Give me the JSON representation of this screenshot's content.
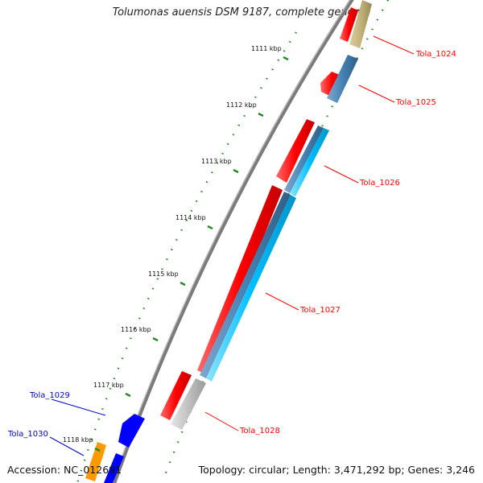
{
  "title": "Tolumonas auensis DSM 9187, complete genome",
  "accession": "Accession: NC_012691",
  "summary": "Topology: circular; Length: 3,471,292 bp; Genes: 3,246",
  "kbp_ticks": [
    "1111 kbp",
    "1112 kbp",
    "1113 kbp",
    "1114 kbp",
    "1115 kbp",
    "1116 kbp",
    "1117 kbp",
    "1118 kbp"
  ],
  "gene_labels": [
    {
      "text": "Tola_1024",
      "color": "#ff0000"
    },
    {
      "text": "Tola_1025",
      "color": "#ff0000"
    },
    {
      "text": "Tola_1026",
      "color": "#ff0000"
    },
    {
      "text": "Tola_1027",
      "color": "#ff0000"
    },
    {
      "text": "Tola_1028",
      "color": "#ff0000"
    },
    {
      "text": "Tola_1029",
      "color": "#0000cc"
    },
    {
      "text": "Tola_1030",
      "color": "#0000cc"
    }
  ],
  "colors": {
    "red": "#ff1a1a",
    "steel_blue": "#4682b4",
    "cyan": "#00bfff",
    "olive": "#c2b27a",
    "gray": "#c0c0c0",
    "blue": "#0000ff",
    "orange": "#ff9900",
    "backbone": "#777777",
    "tick_green": "#228b22"
  }
}
